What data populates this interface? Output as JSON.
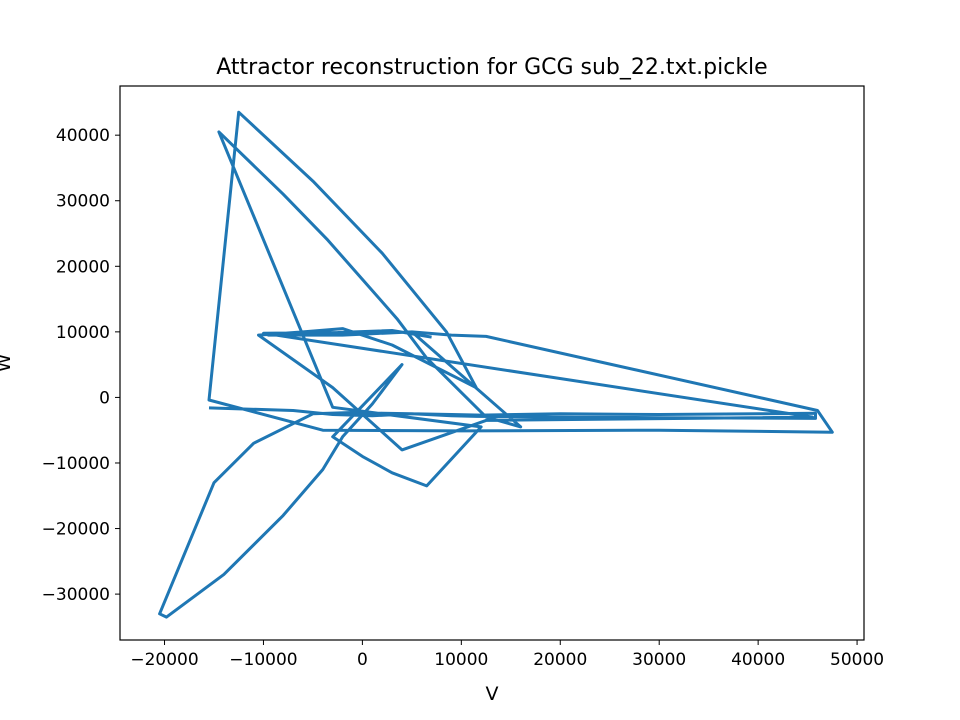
{
  "chart_data": {
    "type": "line",
    "title": "Attractor reconstruction for GCG sub_22.txt.pickle",
    "xlabel": "V",
    "ylabel": "W",
    "xlim": [
      -24500,
      50700
    ],
    "ylim": [
      -37000,
      47500
    ],
    "xticks": [
      -20000,
      -10000,
      0,
      10000,
      20000,
      30000,
      40000,
      50000
    ],
    "yticks": [
      -30000,
      -20000,
      -10000,
      0,
      10000,
      20000,
      30000,
      40000
    ],
    "xtick_labels": [
      "−20000",
      "−10000",
      "0",
      "10000",
      "20000",
      "30000",
      "40000",
      "50000"
    ],
    "ytick_labels": [
      "−30000",
      "−20000",
      "−10000",
      "0",
      "10000",
      "20000",
      "30000",
      "40000"
    ],
    "grid": false,
    "line_color": "#1f77b4",
    "series": [
      {
        "description": "phase-space trajectory (approximate path)",
        "x": [
          -15500,
          -7000,
          -3000,
          1000,
          5000,
          9000,
          12000,
          20000,
          30000,
          40000,
          45800,
          45800,
          30000,
          20000,
          11500,
          9000,
          5000,
          2000,
          -1000,
          -5000,
          -11000,
          -15000,
          -20500,
          -19800,
          -14000,
          -8000,
          -4000,
          -2000,
          1000,
          4000,
          -3000,
          0,
          3000,
          6500,
          12000,
          -3000,
          -14500,
          -8000,
          -3500,
          0,
          3500,
          6500,
          12500,
          16000,
          5000,
          -2000,
          -9500,
          -3000,
          1000,
          5000,
          9000,
          12500,
          46000,
          47500,
          30000,
          10000,
          -4000,
          -15500,
          -12500,
          -5000,
          2000,
          8500,
          11500,
          3000,
          -2000,
          -6000,
          -10500,
          -3000,
          4000,
          12500,
          45500,
          -10000,
          -2500,
          3000,
          7000
        ],
        "y": [
          -1600,
          -2000,
          -2600,
          -2800,
          -2500,
          -2600,
          -2700,
          -2500,
          -2600,
          -2500,
          -2400,
          -3200,
          -3100,
          -3000,
          -2900,
          -2800,
          -2500,
          -2400,
          -2300,
          -2500,
          -7000,
          -13000,
          -33000,
          -33500,
          -27000,
          -18000,
          -11000,
          -6000,
          -1000,
          5000,
          -6000,
          -9000,
          -11500,
          -13500,
          -4500,
          -1500,
          40500,
          31000,
          24000,
          18000,
          12000,
          6000,
          -3000,
          -4500,
          10000,
          9500,
          9500,
          9600,
          9800,
          10000,
          9500,
          9300,
          -2000,
          -5300,
          -5000,
          -5100,
          -5000,
          -400,
          43500,
          33000,
          22000,
          10000,
          1500,
          8000,
          10500,
          10000,
          9500,
          1500,
          -8000,
          -3500,
          -3000,
          9800,
          9900,
          10200,
          9200
        ]
      }
    ]
  }
}
